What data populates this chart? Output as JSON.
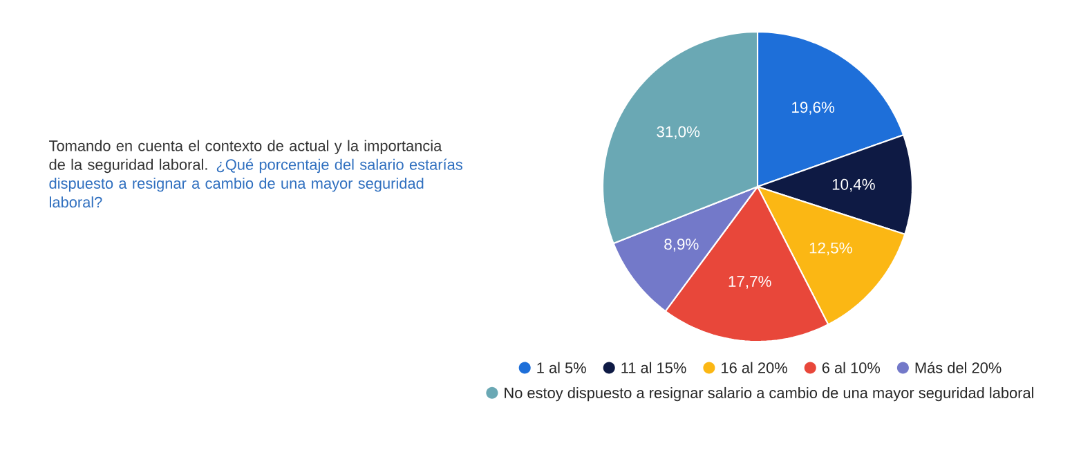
{
  "chart_data": {
    "type": "pie",
    "title": "Tomando en cuenta el contexto de actual y la importancia de la seguridad laboral.",
    "subtitle": "¿Qué porcentaje del salario estarías dispuesto a resignar a cambio de una mayor seguridad laboral?",
    "categories": [
      "1 al 5%",
      "11 al 15%",
      "16 al 20%",
      "6 al 10%",
      "Más del 20%",
      "No estoy dispuesto a resignar salario a cambio de una mayor seguridad laboral"
    ],
    "values": [
      19.6,
      10.4,
      12.5,
      17.7,
      8.9,
      31.0
    ],
    "value_labels": [
      "19,6%",
      "10,4%",
      "12,5%",
      "17,7%",
      "8,9%",
      "31,0%"
    ],
    "colors": [
      "#1e6fd9",
      "#0e1a44",
      "#fbb714",
      "#e8473a",
      "#7379c9",
      "#6aa8b4"
    ],
    "legend": "bottom"
  }
}
